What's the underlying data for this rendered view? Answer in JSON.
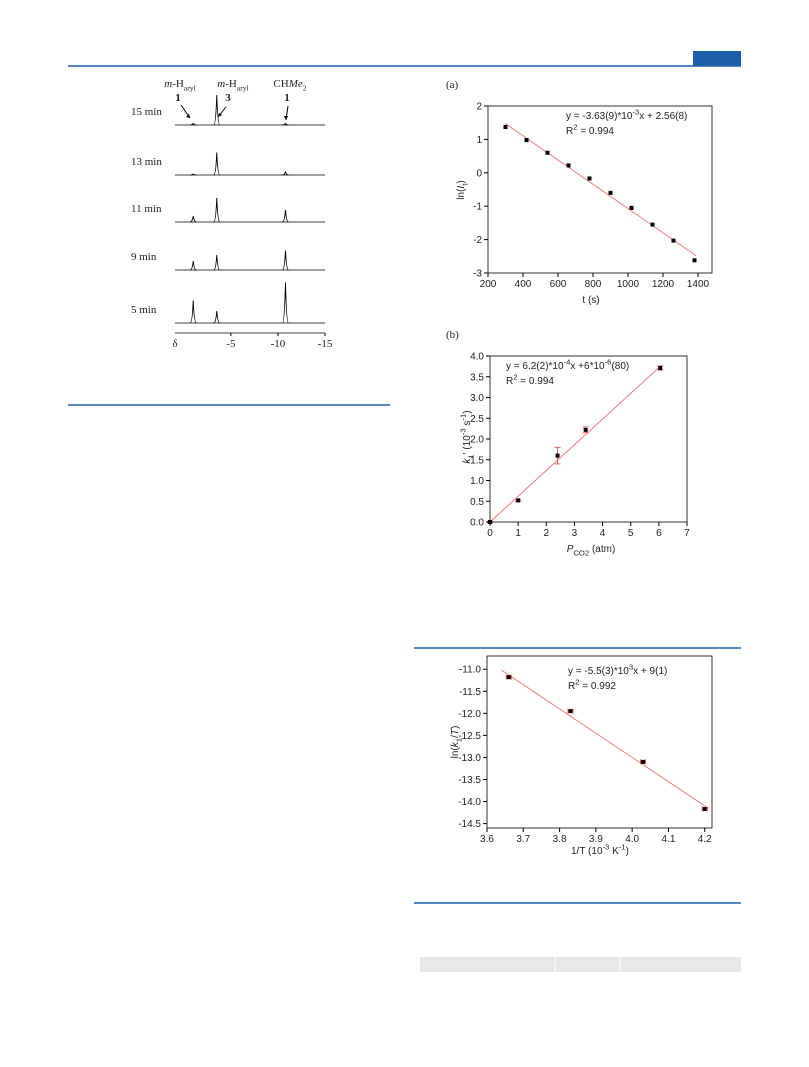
{
  "chart_data": [
    {
      "type": "spectra",
      "color": "#000000",
      "xlabel": "δ",
      "xlim": [
        2,
        -15
      ],
      "xticks": [
        -5,
        -10,
        -15
      ],
      "x": [
        -1,
        -3.5,
        -10.8
      ],
      "annotations": [
        {
          "parts": [
            {
              "i": "m"
            },
            "-H",
            {
              "sub": "aryl"
            }
          ],
          "compound": "1"
        },
        {
          "parts": [
            {
              "i": "m"
            },
            "-H",
            {
              "sub": "aryl"
            }
          ],
          "compound": "3"
        },
        {
          "parts": [
            "CH",
            {
              "i": "Me"
            },
            {
              "sub": "2"
            }
          ],
          "compound": "1"
        }
      ],
      "series": [
        {
          "name": "15 min",
          "values": [
            0.05,
            1.0,
            0.05
          ]
        },
        {
          "name": "13 min",
          "values": [
            0.03,
            0.75,
            0.1
          ]
        },
        {
          "name": "11 min",
          "values": [
            0.2,
            0.8,
            0.4
          ]
        },
        {
          "name": "9 min",
          "values": [
            0.3,
            0.5,
            0.65
          ]
        },
        {
          "name": "5 min",
          "values": [
            0.75,
            0.4,
            1.35
          ]
        }
      ]
    },
    {
      "type": "scatter",
      "panel": "(a)",
      "color": "#000000",
      "equation": [
        "y = -3.63(9)*10",
        {
          "sup": "-3"
        },
        "x + 2.56(8)"
      ],
      "r2": [
        "R",
        {
          "sup": "2"
        },
        " = 0.994"
      ],
      "xlabel": [
        "t (s)"
      ],
      "ylabel": [
        "ln(",
        {
          "i": "I"
        },
        {
          "sub": "t"
        },
        ")"
      ],
      "x": [
        300,
        420,
        540,
        660,
        780,
        900,
        1020,
        1140,
        1260,
        1380
      ],
      "values": [
        1.37,
        0.98,
        0.6,
        0.22,
        -0.17,
        -0.6,
        -1.05,
        -1.55,
        -2.03,
        -2.62
      ],
      "fit": {
        "slope": -0.00363,
        "intercept": 2.56,
        "x": [
          300,
          1390
        ],
        "color": "#f07070"
      },
      "xlim": [
        200,
        1480
      ],
      "ylim": [
        -3,
        2
      ],
      "xticks": [
        200,
        400,
        600,
        800,
        1000,
        1200,
        1400
      ],
      "yticks": [
        -3,
        -2,
        -1,
        0,
        1,
        2
      ]
    },
    {
      "type": "scatter",
      "panel": "(b)",
      "color": "#000000",
      "error_color": "#e05050",
      "equation": [
        "y = 6.2(2)*10",
        {
          "sup": "-4"
        },
        "x +6*10",
        {
          "sup": "-6"
        },
        "(80)"
      ],
      "r2": [
        "R",
        {
          "sup": "2"
        },
        " = 0.994"
      ],
      "xlabel": [
        {
          "i": "P"
        },
        {
          "sub": "CO2"
        },
        " (atm)"
      ],
      "ylabel": [
        {
          "i": "k"
        },
        {
          "sub": "1"
        },
        "' (10",
        {
          "sup": "-3"
        },
        " s",
        {
          "sup": "-1"
        },
        ")"
      ],
      "x": [
        0,
        1,
        2.4,
        3.4,
        6.05
      ],
      "values": [
        0,
        0.52,
        1.6,
        2.22,
        3.71
      ],
      "errors": [
        0.02,
        0.02,
        0.2,
        0.07,
        0.05
      ],
      "fit": {
        "slope": 0.62,
        "intercept": 0,
        "x": [
          0,
          6.1
        ],
        "color": "#f07070"
      },
      "xlim": [
        0,
        7
      ],
      "ylim": [
        0,
        4
      ],
      "xticks": [
        0,
        1,
        2,
        3,
        4,
        5,
        6,
        7
      ],
      "yticks": [
        {
          "value": 0,
          "label": "0.0"
        },
        0.5,
        {
          "value": 1,
          "label": "1.0"
        },
        1.5,
        {
          "value": 2,
          "label": "2.0"
        },
        2.5,
        {
          "value": 3,
          "label": "3.0"
        },
        3.5,
        {
          "value": 4,
          "label": "4.0"
        }
      ]
    },
    {
      "type": "scatter",
      "color": "#000000",
      "error_color": "#e05050",
      "equation": [
        "y = -5.5(3)*10",
        {
          "sup": "3"
        },
        "x + 9(1)"
      ],
      "r2": [
        "R",
        {
          "sup": "2"
        },
        " = 0.992"
      ],
      "xlabel": [
        "1/T (10",
        {
          "sup": "-3"
        },
        " K",
        {
          "sup": "-1"
        },
        ")"
      ],
      "ylabel": [
        "ln(",
        {
          "i": "k"
        },
        {
          "sub": "1"
        },
        "/",
        {
          "i": "T"
        },
        ")"
      ],
      "x": [
        3.66,
        3.83,
        4.03,
        4.2
      ],
      "values": [
        -11.18,
        -11.95,
        -13.1,
        -14.17
      ],
      "xerrors": [
        0.007,
        0.007,
        0.007,
        0.007
      ],
      "fit": {
        "slope": -5.5,
        "intercept": 9,
        "x": [
          3.64,
          4.21
        ],
        "color": "#f07070"
      },
      "xlim": [
        3.6,
        4.22
      ],
      "ylim": [
        -14.6,
        -10.7
      ],
      "xticks": [
        3.6,
        3.7,
        3.8,
        3.9,
        {
          "value": 4,
          "label": "4.0"
        },
        4.1,
        4.2
      ],
      "yticks": [
        {
          "value": -11,
          "label": "-11.0"
        },
        -11.5,
        {
          "value": -12,
          "label": "-12.0"
        },
        -12.5,
        {
          "value": -13,
          "label": "-13.0"
        },
        -13.5,
        {
          "value": -14,
          "label": "-14.0"
        },
        -14.5
      ]
    }
  ]
}
